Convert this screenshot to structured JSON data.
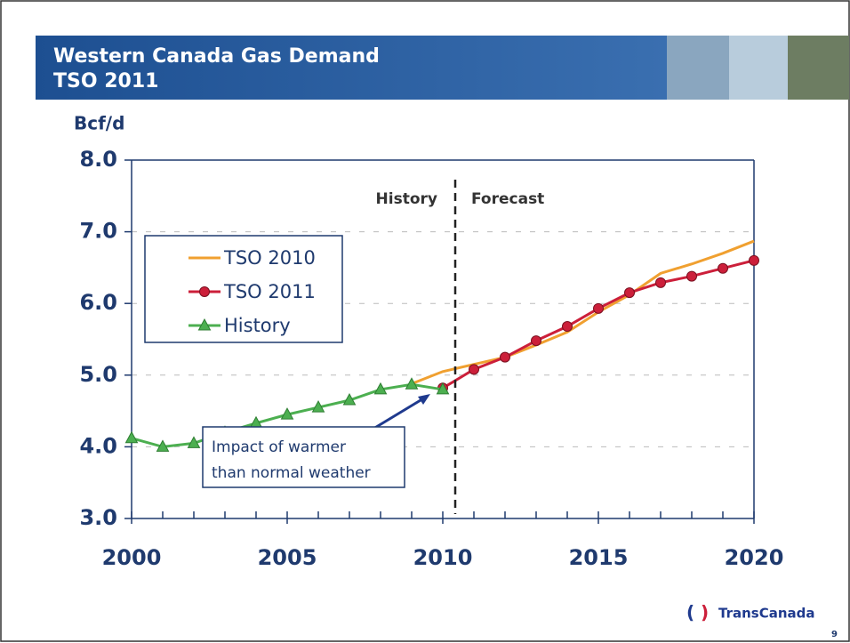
{
  "chart_data": {
    "type": "line",
    "title": "Western Canada Gas Demand",
    "subtitle": "TSO 2011",
    "y_label": "Bcf/d",
    "x": [
      2000,
      2001,
      2002,
      2003,
      2004,
      2005,
      2006,
      2007,
      2008,
      2009,
      2010,
      2011,
      2012,
      2013,
      2014,
      2015,
      2016,
      2017,
      2018,
      2019,
      2020
    ],
    "series": [
      {
        "name": "TSO 2010",
        "color": "#f0a030",
        "marker": "none",
        "values": [
          null,
          null,
          null,
          null,
          null,
          null,
          null,
          null,
          null,
          4.88,
          5.05,
          5.15,
          5.25,
          5.42,
          5.6,
          5.88,
          6.12,
          6.42,
          6.55,
          6.7,
          6.87
        ]
      },
      {
        "name": "TSO 2011",
        "color": "#cc1f3a",
        "marker": "circle",
        "values": [
          null,
          null,
          null,
          null,
          null,
          null,
          null,
          null,
          null,
          null,
          4.82,
          5.08,
          5.25,
          5.48,
          5.68,
          5.93,
          6.15,
          6.29,
          6.38,
          6.49,
          6.6
        ]
      },
      {
        "name": "History",
        "color": "#4caf50",
        "marker": "triangle",
        "values": [
          4.12,
          4.0,
          4.05,
          4.2,
          4.33,
          4.45,
          4.55,
          4.65,
          4.8,
          4.87,
          4.8,
          null,
          null,
          null,
          null,
          null,
          null,
          null,
          null,
          null,
          null
        ]
      }
    ],
    "xlim": [
      2000,
      2020
    ],
    "xticks": [
      2000,
      2005,
      2010,
      2015,
      2020
    ],
    "ylim": [
      3,
      8
    ],
    "yticks": [
      {
        "value": 3,
        "label": "3.0"
      },
      {
        "value": 4,
        "label": "4.0"
      },
      {
        "value": 5,
        "label": "5.0"
      },
      {
        "value": 6,
        "label": "6.0"
      },
      {
        "value": 7,
        "label": "7.0"
      },
      {
        "value": 8,
        "label": "8.0"
      }
    ],
    "grid": true,
    "legend": "upper left",
    "annotations": [
      "History",
      "Forecast",
      "Impact of warmer",
      "than normal weather"
    ],
    "footer": {
      "logo": "TransCanada",
      "page": "9"
    }
  }
}
